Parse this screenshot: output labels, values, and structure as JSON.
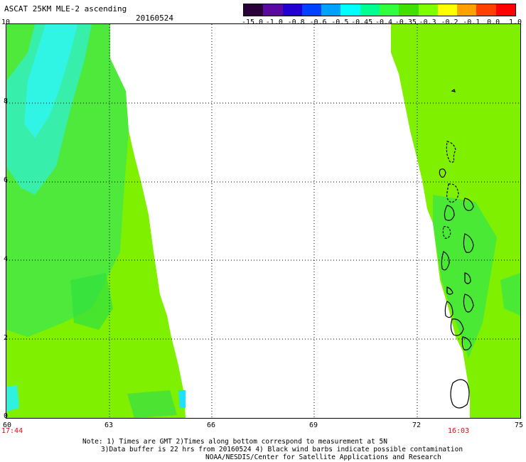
{
  "header": {
    "title": "ASCAT 25KM MLE-2 ascending",
    "date": "20160524"
  },
  "colorbar": {
    "colors": [
      "#2a0038",
      "#5a0aa0",
      "#2200d0",
      "#0040ff",
      "#00a0ff",
      "#00ffff",
      "#00ff90",
      "#30ff40",
      "#40e000",
      "#80ff00",
      "#ffff00",
      "#ffa000",
      "#ff4000",
      "#ff0000"
    ],
    "labels": [
      "-15.0",
      "-1.0",
      "-0.8",
      "-0.6",
      "-0.5",
      "-0.45",
      "-0.4",
      "-0.35",
      "-0.3",
      "-0.2",
      "-0.1",
      "0.0",
      "1.0"
    ]
  },
  "axes": {
    "y_ticks": [
      "10",
      "8",
      "6",
      "4",
      "2",
      "0"
    ],
    "x_ticks": [
      "60",
      "63",
      "66",
      "69",
      "72",
      "75"
    ],
    "time_left": "17:44",
    "time_right": "16:03"
  },
  "notes": {
    "line1": "Note: 1) Times are GMT 2)Times along bottom correspond to measurement at 5N",
    "line2": "3)Data buffer is 22 hrs from 20160524 4) Black wind barbs indicate possible contamination",
    "line3": "NOAA/NESDIS/Center for Satellite Applications and Research"
  },
  "map": {
    "x_range": [
      60,
      75
    ],
    "y_range": [
      0,
      10
    ],
    "swath_color": "#7ef000",
    "green_color": "#38e838",
    "cyan_color": "#30f0e0"
  }
}
